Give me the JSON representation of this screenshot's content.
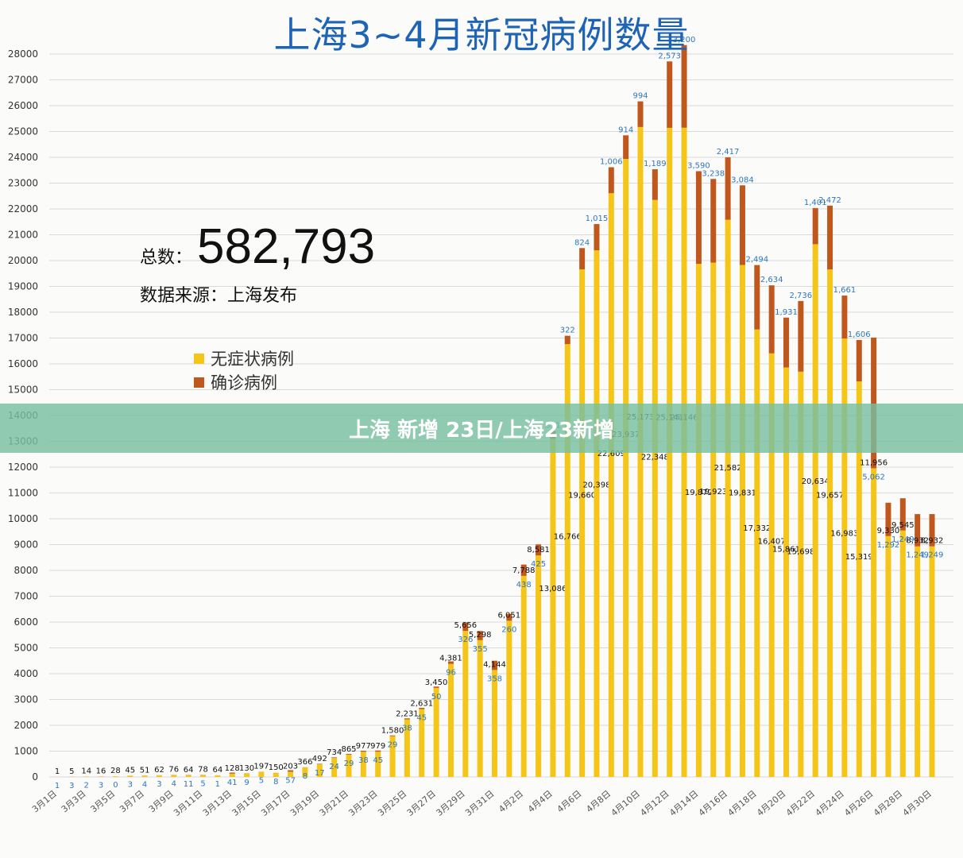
{
  "header": {
    "title": "上海3~4月新冠病例数量"
  },
  "summary": {
    "total_label": "总数：",
    "total_value": "582,793",
    "source": "数据来源：上海发布"
  },
  "banner": {
    "text": "上海 新增 23日/上海23新增"
  },
  "chart_data": {
    "type": "bar",
    "stacked": true,
    "title": "上海3~4月新冠病例数量",
    "ylim": [
      0,
      28000
    ],
    "yticks": [
      0,
      1000,
      2000,
      3000,
      4000,
      5000,
      6000,
      7000,
      8000,
      9000,
      10000,
      11000,
      12000,
      13000,
      14000,
      15000,
      16000,
      17000,
      18000,
      19000,
      20000,
      21000,
      22000,
      23000,
      24000,
      25000,
      26000,
      27000,
      28000
    ],
    "grid": true,
    "legend_position": "left-middle",
    "categories": [
      "3月1日",
      "3月2日",
      "3月3日",
      "3月4日",
      "3月5日",
      "3月6日",
      "3月7日",
      "3月8日",
      "3月9日",
      "3月10日",
      "3月11日",
      "3月12日",
      "3月13日",
      "3月14日",
      "3月15日",
      "3月16日",
      "3月17日",
      "3月18日",
      "3月19日",
      "3月20日",
      "3月21日",
      "3月22日",
      "3月23日",
      "3月24日",
      "3月25日",
      "3月26日",
      "3月27日",
      "3月28日",
      "3月29日",
      "3月30日",
      "3月31日",
      "4月1日",
      "4月2日",
      "4月3日",
      "4月4日",
      "4月5日",
      "4月6日",
      "4月7日",
      "4月8日",
      "4月9日",
      "4月10日",
      "4月11日",
      "4月12日",
      "4月13日",
      "4月14日",
      "4月15日",
      "4月16日",
      "4月17日",
      "4月18日",
      "4月19日",
      "4月20日",
      "4月21日",
      "4月22日",
      "4月23日",
      "4月24日",
      "4月25日",
      "4月26日",
      "4月27日",
      "4月28日",
      "4月29日",
      "4月30日"
    ],
    "tick_labels": [
      "3月1日",
      "3月3日",
      "3月5日",
      "3月7日",
      "3月9日",
      "3月11日",
      "3月13日",
      "3月15日",
      "3月17日",
      "3月19日",
      "3月21日",
      "3月23日",
      "3月25日",
      "3月27日",
      "3月29日",
      "3月31日",
      "4月2日",
      "4月4日",
      "4月6日",
      "4月8日",
      "4月10日",
      "4月12日",
      "4月14日",
      "4月16日",
      "4月18日",
      "4月20日",
      "4月22日",
      "4月24日",
      "4月26日",
      "4月28日",
      "4月30日"
    ],
    "series": [
      {
        "name": "无症状病例",
        "color": "#f5c518",
        "values": [
          1,
          5,
          14,
          16,
          28,
          45,
          51,
          62,
          76,
          64,
          78,
          64,
          128,
          130,
          197,
          150,
          203,
          366,
          492,
          734,
          865,
          977,
          979,
          1580,
          2231,
          2631,
          3450,
          4381,
          5656,
          5298,
          4144,
          6051,
          7788,
          8581,
          13086,
          16766,
          19660,
          20398,
          22609,
          23937,
          25173,
          22348,
          25141,
          25146,
          19872,
          19923,
          21582,
          19831,
          17332,
          16407,
          15861,
          15698,
          20634,
          19657,
          16983,
          15319,
          11956,
          9330,
          9545,
          8932,
          8932
        ]
      },
      {
        "name": "确诊病例",
        "color": "#c0571c",
        "values": [
          1,
          3,
          2,
          3,
          0,
          3,
          4,
          3,
          4,
          11,
          5,
          1,
          41,
          9,
          5,
          8,
          57,
          8,
          17,
          24,
          29,
          38,
          45,
          29,
          38,
          45,
          50,
          96,
          326,
          355,
          358,
          260,
          438,
          425,
          311,
          322,
          824,
          1015,
          1006,
          914,
          994,
          1189,
          2573,
          3200,
          3590,
          3238,
          2417,
          3084,
          2494,
          2634,
          1931,
          2736,
          1401,
          2472,
          1661,
          1606,
          5062,
          1292,
          1249,
          1249,
          1249
        ]
      }
    ]
  }
}
